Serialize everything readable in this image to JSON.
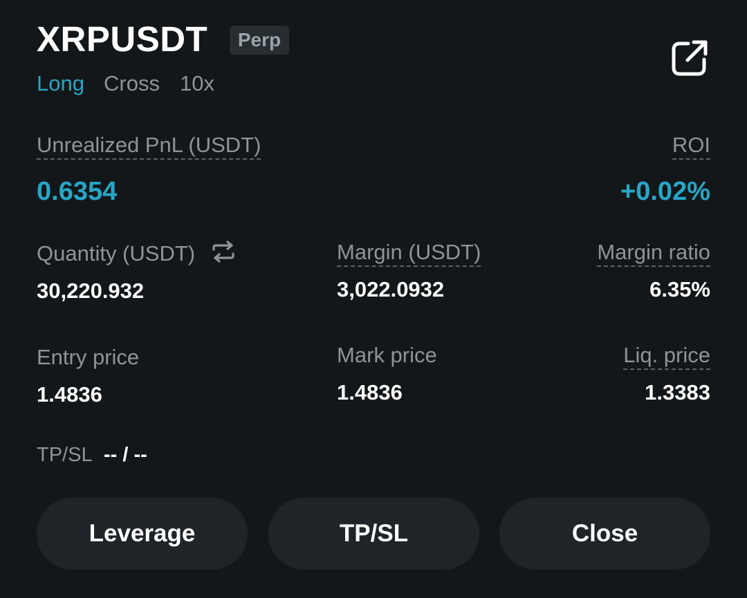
{
  "header": {
    "symbol": "XRPUSDT",
    "badge": "Perp",
    "side": "Long",
    "margin_mode": "Cross",
    "leverage": "10x",
    "share_icon": "share-external-icon"
  },
  "pnl": {
    "label": "Unrealized PnL (USDT)",
    "value": "0.6354",
    "roi_label": "ROI",
    "roi_value": "+0.02%"
  },
  "stats_row1": {
    "quantity_label": "Quantity (USDT)",
    "quantity_value": "30,220.932",
    "swap_icon": "swap-arrows-icon",
    "margin_label": "Margin (USDT)",
    "margin_value": "3,022.0932",
    "margin_ratio_label": "Margin ratio",
    "margin_ratio_value": "6.35%"
  },
  "stats_row2": {
    "entry_label": "Entry price",
    "entry_value": "1.4836",
    "mark_label": "Mark price",
    "mark_value": "1.4836",
    "liq_label": "Liq. price",
    "liq_value": "1.3383"
  },
  "tpsl": {
    "label": "TP/SL",
    "value": "-- / --"
  },
  "actions": {
    "leverage": "Leverage",
    "tpsl": "TP/SL",
    "close": "Close"
  },
  "colors": {
    "background": "#131719",
    "accent": "#28a6c7",
    "muted_text": "#8d9599",
    "button_bg": "#1f2428"
  }
}
